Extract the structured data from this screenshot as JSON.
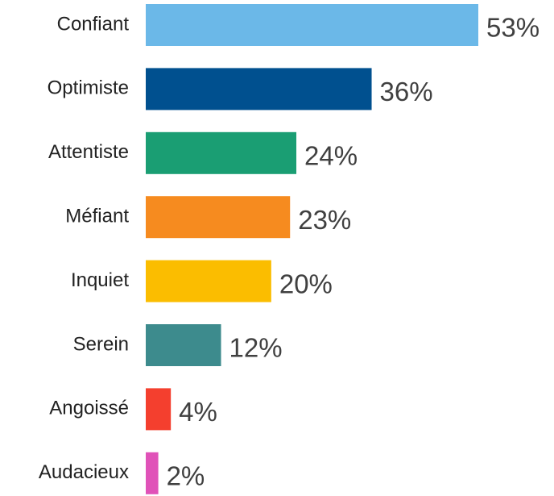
{
  "chart_data": {
    "type": "bar",
    "orientation": "horizontal",
    "categories": [
      "Confiant",
      "Optimiste",
      "Attentiste",
      "Méfiant",
      "Inquiet",
      "Serein",
      "Angoissé",
      "Audacieux"
    ],
    "values": [
      53,
      36,
      24,
      23,
      20,
      12,
      4,
      2
    ],
    "value_labels": [
      "53%",
      "36%",
      "24%",
      "23%",
      "20%",
      "12%",
      "4%",
      "2%"
    ],
    "colors": [
      "#6bb8e8",
      "#00508f",
      "#1a9e73",
      "#f68b1f",
      "#fbbd00",
      "#3d8b8d",
      "#f43f2e",
      "#e052b8"
    ]
  }
}
